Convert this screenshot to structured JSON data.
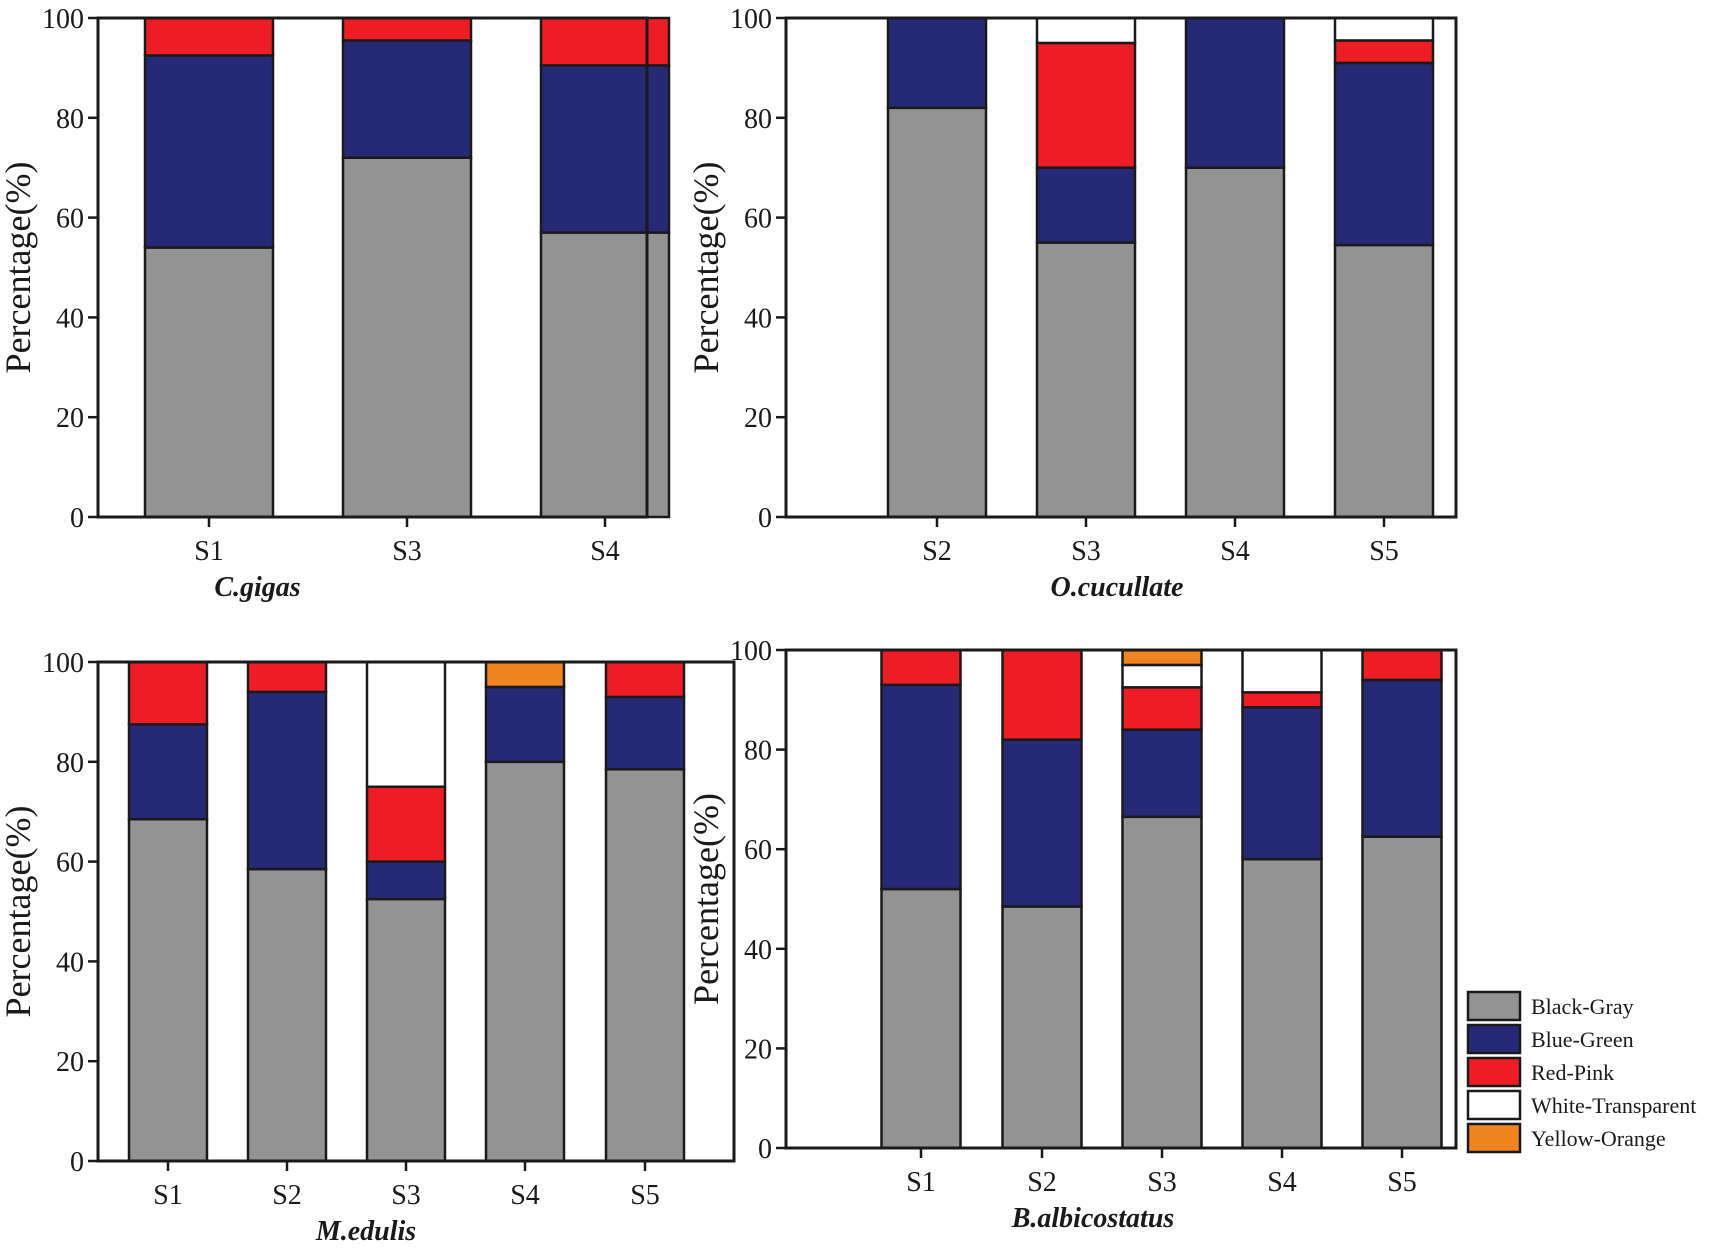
{
  "chart_data": [
    {
      "type": "bar",
      "stacked": true,
      "title": "C.gigas",
      "ylabel": "Percentage(%)",
      "ylim": [
        0,
        100
      ],
      "yticks": [
        0,
        20,
        40,
        60,
        80,
        100
      ],
      "categories": [
        "S1",
        "S3",
        "S4"
      ],
      "series": [
        {
          "name": "Black-Gray",
          "values": [
            54,
            72,
            57
          ]
        },
        {
          "name": "Blue-Green",
          "values": [
            38.5,
            23.5,
            33.5
          ]
        },
        {
          "name": "Red-Pink",
          "values": [
            7.5,
            4.5,
            9.5
          ]
        },
        {
          "name": "White-Transparent",
          "values": [
            0,
            0,
            0
          ]
        },
        {
          "name": "Yellow-Orange",
          "values": [
            0,
            0,
            0
          ]
        }
      ]
    },
    {
      "type": "bar",
      "stacked": true,
      "title": "O.cucullate",
      "ylabel": "Percentage(%)",
      "ylim": [
        0,
        100
      ],
      "yticks": [
        0,
        20,
        40,
        60,
        80,
        100
      ],
      "categories": [
        "S2",
        "S3",
        "S4",
        "S5"
      ],
      "series": [
        {
          "name": "Black-Gray",
          "values": [
            82,
            55,
            70,
            54.5
          ]
        },
        {
          "name": "Blue-Green",
          "values": [
            18,
            15,
            30,
            36.5
          ]
        },
        {
          "name": "Red-Pink",
          "values": [
            0,
            25,
            0,
            4.5
          ]
        },
        {
          "name": "White-Transparent",
          "values": [
            0,
            5,
            0,
            4.5
          ]
        },
        {
          "name": "Yellow-Orange",
          "values": [
            0,
            0,
            0,
            0
          ]
        }
      ]
    },
    {
      "type": "bar",
      "stacked": true,
      "title": "M.edulis",
      "ylabel": "Percentage(%)",
      "ylim": [
        0,
        100
      ],
      "yticks": [
        0,
        20,
        40,
        60,
        80,
        100
      ],
      "categories": [
        "S1",
        "S2",
        "S3",
        "S4",
        "S5"
      ],
      "series": [
        {
          "name": "Black-Gray",
          "values": [
            68.5,
            58.5,
            52.5,
            80,
            78.5
          ]
        },
        {
          "name": "Blue-Green",
          "values": [
            19,
            35.5,
            7.5,
            15,
            14.5
          ]
        },
        {
          "name": "Red-Pink",
          "values": [
            12.5,
            6,
            15,
            0,
            7
          ]
        },
        {
          "name": "White-Transparent",
          "values": [
            0,
            0,
            25,
            0,
            0
          ]
        },
        {
          "name": "Yellow-Orange",
          "values": [
            0,
            0,
            0,
            5,
            0
          ]
        }
      ]
    },
    {
      "type": "bar",
      "stacked": true,
      "title": "B.albicostatus",
      "ylabel": "Percentage(%)",
      "ylim": [
        0,
        100
      ],
      "yticks": [
        0,
        20,
        40,
        60,
        80,
        100
      ],
      "categories": [
        "S1",
        "S2",
        "S3",
        "S4",
        "S5"
      ],
      "series": [
        {
          "name": "Black-Gray",
          "values": [
            52,
            48.5,
            66.5,
            58,
            62.5
          ]
        },
        {
          "name": "Blue-Green",
          "values": [
            41,
            33.5,
            17.5,
            30.5,
            31.5
          ]
        },
        {
          "name": "Red-Pink",
          "values": [
            7,
            18,
            8.5,
            3,
            6
          ]
        },
        {
          "name": "White-Transparent",
          "values": [
            0,
            0,
            4.5,
            8.5,
            0
          ]
        },
        {
          "name": "Yellow-Orange",
          "values": [
            0,
            0,
            3,
            0,
            0
          ]
        }
      ]
    }
  ],
  "legend": {
    "placement": "bottom-right",
    "items": [
      {
        "label": "Black-Gray",
        "color": "#939393"
      },
      {
        "label": "Blue-Green",
        "color": "#262a76"
      },
      {
        "label": "Red-Pink",
        "color": "#ee1c25"
      },
      {
        "label": "White-Transparent",
        "color": "#ffffff"
      },
      {
        "label": "Yellow-Orange",
        "color": "#ef8421"
      }
    ]
  }
}
